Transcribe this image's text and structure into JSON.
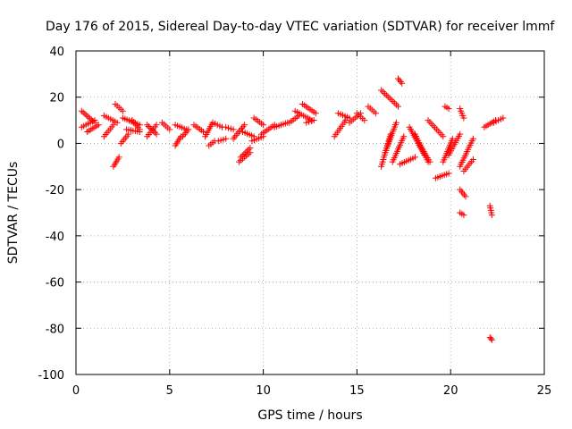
{
  "chart_data": {
    "type": "scatter",
    "title": "Day 176 of 2015, Sidereal Day-to-day VTEC variation (SDTVAR) for receiver lmmf",
    "xlabel": "GPS time / hours",
    "ylabel": "SDTVAR / TECUs",
    "xlim": [
      0,
      25
    ],
    "ylim": [
      -100,
      40
    ],
    "xticks": [
      0,
      5,
      10,
      15,
      20,
      25
    ],
    "yticks": [
      40,
      20,
      0,
      -20,
      -40,
      -60,
      -80,
      -100
    ],
    "grid": true,
    "marker": "+",
    "color": "#ff0000",
    "segments": [
      {
        "x": [
          0.3,
          1.0
        ],
        "y": [
          7,
          10
        ]
      },
      {
        "x": [
          0.3,
          1.0
        ],
        "y": [
          14,
          9
        ]
      },
      {
        "x": [
          0.6,
          1.2
        ],
        "y": [
          5,
          8
        ]
      },
      {
        "x": [
          1.5,
          2.0
        ],
        "y": [
          3,
          8
        ]
      },
      {
        "x": [
          1.5,
          2.2
        ],
        "y": [
          12,
          9
        ]
      },
      {
        "x": [
          2.0,
          2.3
        ],
        "y": [
          -10,
          -6
        ]
      },
      {
        "x": [
          2.1,
          2.5
        ],
        "y": [
          17,
          14
        ]
      },
      {
        "x": [
          2.4,
          2.8
        ],
        "y": [
          0,
          4
        ]
      },
      {
        "x": [
          2.5,
          3.4
        ],
        "y": [
          11,
          8
        ]
      },
      {
        "x": [
          2.7,
          3.4
        ],
        "y": [
          6,
          5
        ]
      },
      {
        "x": [
          3.0,
          3.4
        ],
        "y": [
          10,
          6
        ]
      },
      {
        "x": [
          3.8,
          4.3
        ],
        "y": [
          3,
          8
        ]
      },
      {
        "x": [
          3.8,
          4.3
        ],
        "y": [
          8,
          4
        ]
      },
      {
        "x": [
          4.6,
          5.0
        ],
        "y": [
          9,
          6
        ]
      },
      {
        "x": [
          5.3,
          5.6
        ],
        "y": [
          -1,
          3
        ]
      },
      {
        "x": [
          5.3,
          5.9
        ],
        "y": [
          8,
          6
        ]
      },
      {
        "x": [
          5.7,
          6.0
        ],
        "y": [
          3,
          6
        ]
      },
      {
        "x": [
          6.3,
          6.8
        ],
        "y": [
          8,
          5
        ]
      },
      {
        "x": [
          6.9,
          7.3
        ],
        "y": [
          3,
          9
        ]
      },
      {
        "x": [
          7.1,
          7.4
        ],
        "y": [
          -1,
          1
        ]
      },
      {
        "x": [
          7.3,
          7.8
        ],
        "y": [
          9,
          7
        ]
      },
      {
        "x": [
          7.6,
          8.0
        ],
        "y": [
          1,
          2
        ]
      },
      {
        "x": [
          8.0,
          8.4
        ],
        "y": [
          7,
          6
        ]
      },
      {
        "x": [
          8.4,
          9.0
        ],
        "y": [
          2,
          8
        ]
      },
      {
        "x": [
          8.7,
          9.3
        ],
        "y": [
          -8,
          -4
        ]
      },
      {
        "x": [
          8.8,
          9.3
        ],
        "y": [
          -6,
          -2
        ]
      },
      {
        "x": [
          8.9,
          9.5
        ],
        "y": [
          5,
          3
        ]
      },
      {
        "x": [
          9.4,
          10.0
        ],
        "y": [
          1,
          3
        ]
      },
      {
        "x": [
          9.5,
          10.0
        ],
        "y": [
          11,
          8
        ]
      },
      {
        "x": [
          9.9,
          10.6
        ],
        "y": [
          4,
          8
        ]
      },
      {
        "x": [
          10.6,
          11.3
        ],
        "y": [
          7,
          9
        ]
      },
      {
        "x": [
          11.4,
          11.9
        ],
        "y": [
          9,
          12
        ]
      },
      {
        "x": [
          11.7,
          12.6
        ],
        "y": [
          14,
          10
        ]
      },
      {
        "x": [
          12.1,
          12.8
        ],
        "y": [
          17,
          13
        ]
      },
      {
        "x": [
          12.3,
          12.7
        ],
        "y": [
          9,
          10
        ]
      },
      {
        "x": [
          13.8,
          14.4
        ],
        "y": [
          3,
          10
        ]
      },
      {
        "x": [
          14.0,
          14.6
        ],
        "y": [
          13,
          11
        ]
      },
      {
        "x": [
          14.6,
          15.2
        ],
        "y": [
          9,
          13
        ]
      },
      {
        "x": [
          15.0,
          15.4
        ],
        "y": [
          13,
          10
        ]
      },
      {
        "x": [
          15.6,
          16.0
        ],
        "y": [
          16,
          13
        ]
      },
      {
        "x": [
          16.3,
          17.2
        ],
        "y": [
          23,
          16
        ]
      },
      {
        "x": [
          16.3,
          16.8
        ],
        "y": [
          -10,
          4
        ]
      },
      {
        "x": [
          16.5,
          17.1
        ],
        "y": [
          -4,
          9
        ]
      },
      {
        "x": [
          16.9,
          17.5
        ],
        "y": [
          -8,
          3
        ]
      },
      {
        "x": [
          17.2,
          17.4
        ],
        "y": [
          28,
          26
        ]
      },
      {
        "x": [
          17.3,
          18.1
        ],
        "y": [
          -9,
          -6
        ]
      },
      {
        "x": [
          17.8,
          18.6
        ],
        "y": [
          7,
          -5
        ]
      },
      {
        "x": [
          18.1,
          18.8
        ],
        "y": [
          4,
          -8
        ]
      },
      {
        "x": [
          18.3,
          18.9
        ],
        "y": [
          0,
          -8
        ]
      },
      {
        "x": [
          18.8,
          19.6
        ],
        "y": [
          10,
          3
        ]
      },
      {
        "x": [
          19.2,
          19.9
        ],
        "y": [
          -15,
          -13
        ]
      },
      {
        "x": [
          19.6,
          20.1
        ],
        "y": [
          -8,
          2
        ]
      },
      {
        "x": [
          19.9,
          20.5
        ],
        "y": [
          -5,
          4
        ]
      },
      {
        "x": [
          19.7,
          19.9
        ],
        "y": [
          16,
          15
        ]
      },
      {
        "x": [
          20.5,
          20.7
        ],
        "y": [
          15,
          11
        ]
      },
      {
        "x": [
          20.5,
          21.2
        ],
        "y": [
          -10,
          2
        ]
      },
      {
        "x": [
          20.7,
          21.2
        ],
        "y": [
          -12,
          -7
        ]
      },
      {
        "x": [
          20.5,
          20.8
        ],
        "y": [
          -20,
          -23
        ]
      },
      {
        "x": [
          20.5,
          20.7
        ],
        "y": [
          -30,
          -31
        ]
      },
      {
        "x": [
          21.8,
          22.4
        ],
        "y": [
          7,
          10
        ]
      },
      {
        "x": [
          22.1,
          22.2
        ],
        "y": [
          -27,
          -31
        ]
      },
      {
        "x": [
          22.1,
          22.2
        ],
        "y": [
          -84,
          -85
        ]
      },
      {
        "x": [
          22.3,
          22.8
        ],
        "y": [
          9,
          11
        ]
      }
    ]
  }
}
